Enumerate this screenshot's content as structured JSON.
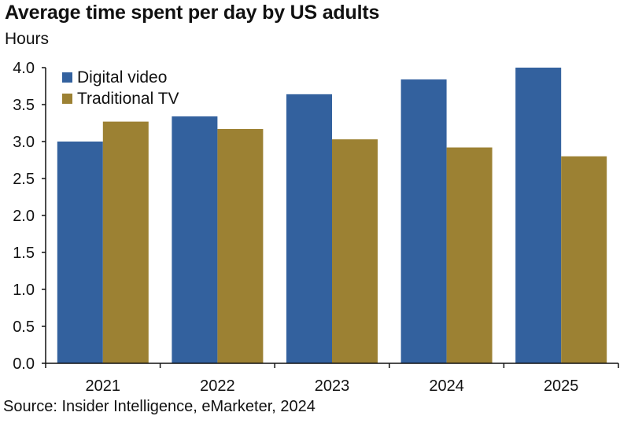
{
  "chart_data": {
    "type": "bar",
    "title": "Average time spent per day by US adults",
    "subtitle": "Hours",
    "source": "Source: Insider Intelligence, eMarketer, 2024",
    "categories": [
      "2021",
      "2022",
      "2023",
      "2024",
      "2025"
    ],
    "series": [
      {
        "name": "Digital video",
        "color": "#33619e",
        "values": [
          3.0,
          3.34,
          3.64,
          3.84,
          4.0
        ]
      },
      {
        "name": "Traditional TV",
        "color": "#9c8133",
        "values": [
          3.27,
          3.17,
          3.03,
          2.92,
          2.8
        ]
      }
    ],
    "y_ticks": [
      "0.0",
      "0.5",
      "1.0",
      "1.5",
      "2.0",
      "2.5",
      "3.0",
      "3.5",
      "4.0"
    ],
    "ylim": [
      0,
      4
    ],
    "grid": false,
    "legend_position": "top-left"
  }
}
